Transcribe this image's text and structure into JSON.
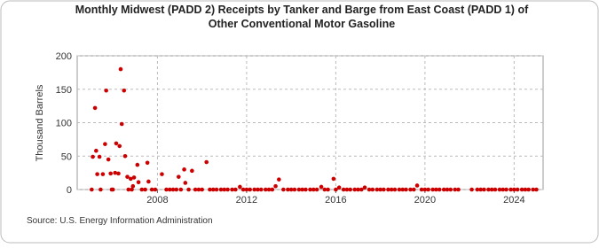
{
  "chart_data": {
    "type": "scatter",
    "title": "Monthly Midwest (PADD 2) Receipts by Tanker and Barge from East Coast (PADD 1) of Other Conventional Motor Gasoline",
    "y_label": "Thousand Barrels",
    "source": "Source: U.S. Energy Information Administration",
    "color": "#cc0000",
    "grid": true,
    "xlim": [
      2004.4,
      2025.3
    ],
    "xticks": [
      2008,
      2012,
      2016,
      2020,
      2024
    ],
    "ylim": [
      0,
      200
    ],
    "yticks": [
      0,
      50,
      100,
      150,
      200
    ],
    "x": [
      2005.05,
      2005.1,
      2005.2,
      2005.25,
      2005.3,
      2005.4,
      2005.45,
      2005.55,
      2005.65,
      2005.7,
      2005.8,
      2005.9,
      2005.95,
      2006.0,
      2006.1,
      2006.15,
      2006.25,
      2006.3,
      2006.35,
      2006.4,
      2006.5,
      2006.55,
      2006.65,
      2006.7,
      2006.8,
      2006.85,
      2006.9,
      2006.95,
      2007.1,
      2007.15,
      2007.3,
      2007.45,
      2007.55,
      2007.6,
      2007.75,
      2007.9,
      2008.2,
      2008.4,
      2008.55,
      2008.7,
      2008.85,
      2008.95,
      2009.05,
      2009.2,
      2009.25,
      2009.4,
      2009.55,
      2009.7,
      2009.85,
      2010.0,
      2010.2,
      2010.35,
      2010.5,
      2010.65,
      2010.85,
      2011.0,
      2011.15,
      2011.35,
      2011.5,
      2011.7,
      2011.85,
      2012.0,
      2012.15,
      2012.35,
      2012.5,
      2012.65,
      2012.85,
      2013.0,
      2013.15,
      2013.3,
      2013.45,
      2013.65,
      2013.85,
      2014.0,
      2014.15,
      2014.35,
      2014.5,
      2014.65,
      2014.85,
      2015.0,
      2015.15,
      2015.35,
      2015.5,
      2015.65,
      2015.9,
      2016.0,
      2016.15,
      2016.35,
      2016.5,
      2016.65,
      2016.85,
      2017.0,
      2017.15,
      2017.3,
      2017.5,
      2017.65,
      2017.85,
      2018.0,
      2018.15,
      2018.35,
      2018.5,
      2018.65,
      2018.85,
      2019.0,
      2019.15,
      2019.35,
      2019.5,
      2019.65,
      2019.85,
      2020.0,
      2020.15,
      2020.35,
      2020.5,
      2020.65,
      2020.85,
      2021.0,
      2021.15,
      2021.35,
      2021.5,
      2022.1,
      2022.35,
      2022.5,
      2022.65,
      2022.85,
      2023.0,
      2023.15,
      2023.35,
      2023.5,
      2023.65,
      2023.85,
      2024.0,
      2024.15,
      2024.35,
      2024.5,
      2024.65,
      2024.85,
      2025.0
    ],
    "values": [
      0,
      49,
      122,
      58,
      23,
      49,
      0,
      23,
      68,
      148,
      45,
      24,
      0,
      0,
      25,
      69,
      24,
      65,
      180,
      98,
      148,
      50,
      19,
      0,
      16,
      0,
      5,
      18,
      37,
      11,
      0,
      0,
      40,
      12,
      0,
      0,
      23,
      0,
      0,
      0,
      0,
      19,
      0,
      30,
      10,
      0,
      28,
      0,
      0,
      0,
      41,
      0,
      0,
      0,
      0,
      0,
      0,
      0,
      0,
      4,
      0,
      0,
      0,
      0,
      0,
      0,
      0,
      0,
      0,
      5,
      15,
      0,
      0,
      0,
      0,
      0,
      0,
      0,
      0,
      0,
      0,
      4,
      0,
      0,
      16,
      0,
      3,
      0,
      0,
      0,
      0,
      0,
      0,
      3,
      0,
      0,
      0,
      0,
      0,
      0,
      0,
      0,
      0,
      0,
      0,
      0,
      0,
      6,
      0,
      0,
      0,
      0,
      0,
      0,
      0,
      0,
      0,
      0,
      0,
      0,
      0,
      0,
      0,
      0,
      0,
      0,
      0,
      0,
      0,
      0,
      0,
      0,
      0,
      0,
      0,
      0,
      0
    ]
  }
}
